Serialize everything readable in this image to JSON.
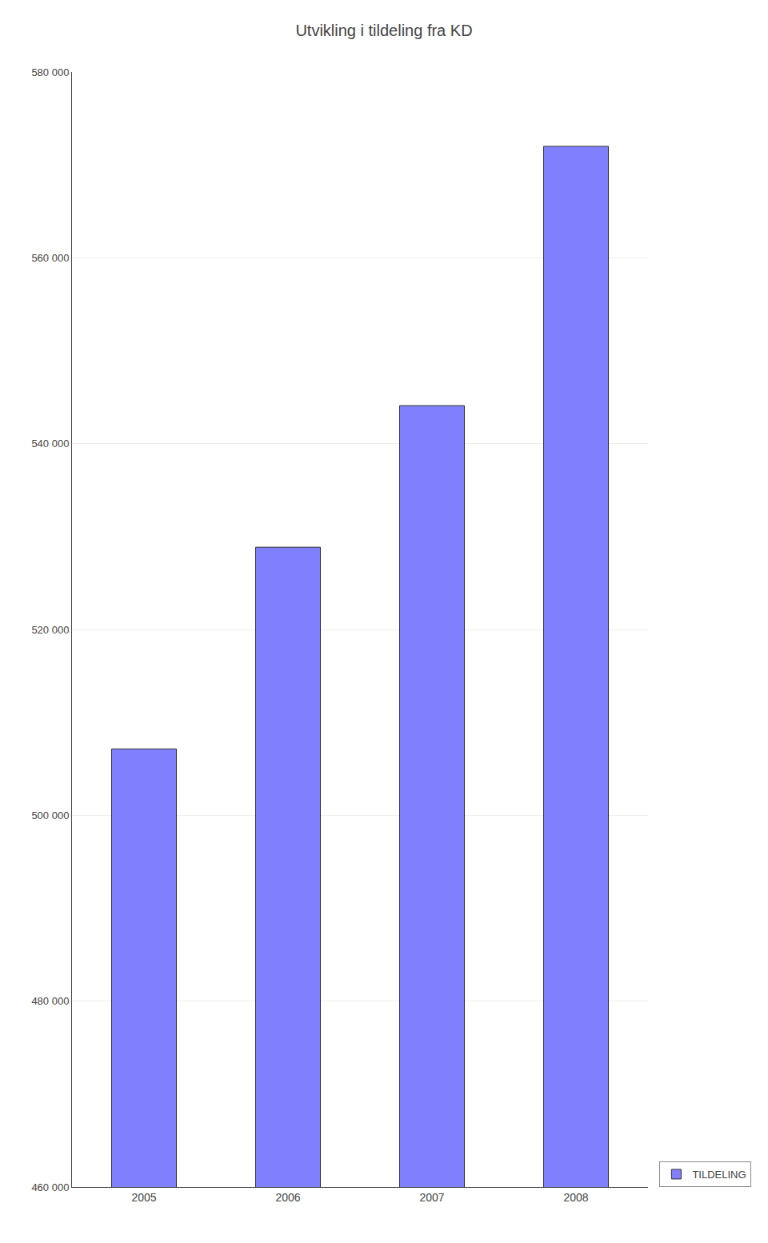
{
  "chart_data": {
    "type": "bar",
    "title": "Utvikling i tildeling fra KD",
    "categories": [
      "2005",
      "2006",
      "2007",
      "2008"
    ],
    "series": [
      {
        "name": "TILDELING",
        "color": "#8080ff",
        "values": [
          507155,
          528857,
          544094,
          572000
        ]
      }
    ],
    "ylim": [
      460000,
      580000
    ],
    "yticks": [
      {
        "value": 460000,
        "label": "460 000"
      },
      {
        "value": 480000,
        "label": "480 000"
      },
      {
        "value": 500000,
        "label": "500 000"
      },
      {
        "value": 520000,
        "label": "520 000"
      },
      {
        "value": 540000,
        "label": "540 000"
      },
      {
        "value": 560000,
        "label": "560 000"
      },
      {
        "value": 580000,
        "label": "580 000"
      }
    ],
    "grid": true,
    "legend": "lower right"
  }
}
